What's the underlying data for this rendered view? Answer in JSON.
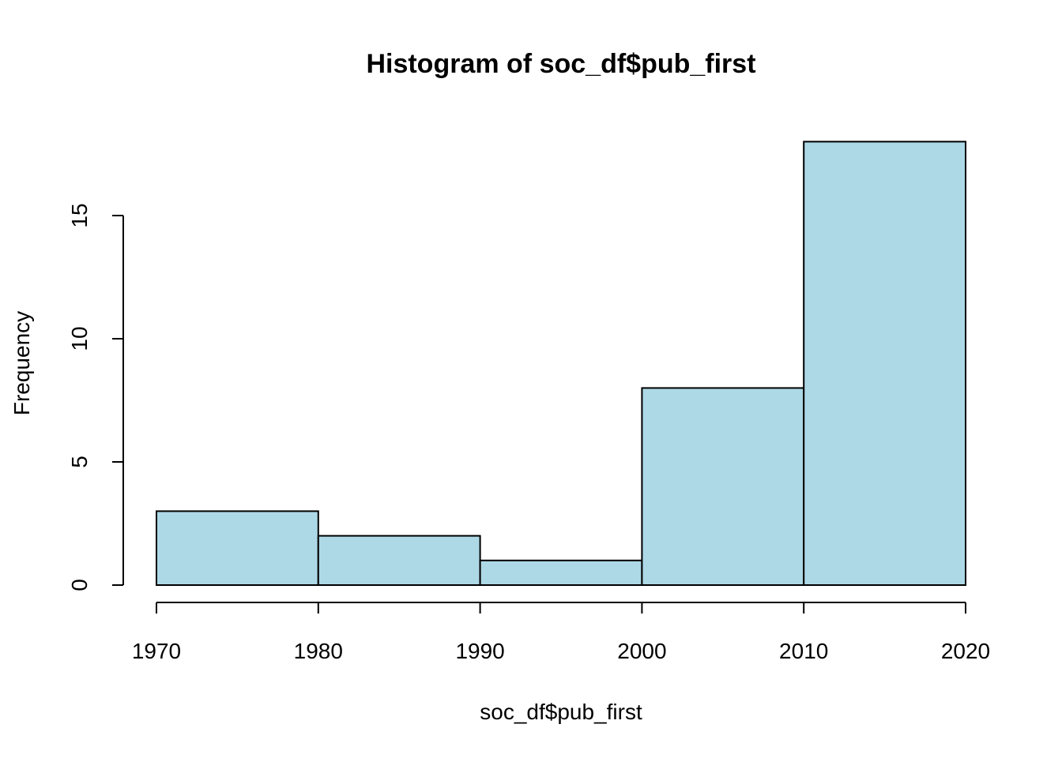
{
  "chart_data": {
    "type": "bar",
    "title": "Histogram of soc_df$pub_first",
    "xlabel": "soc_df$pub_first",
    "ylabel": "Frequency",
    "bins": [
      {
        "start": 1970,
        "end": 1980,
        "count": 3
      },
      {
        "start": 1980,
        "end": 1990,
        "count": 2
      },
      {
        "start": 1990,
        "end": 2000,
        "count": 1
      },
      {
        "start": 2000,
        "end": 2010,
        "count": 8
      },
      {
        "start": 2010,
        "end": 2020,
        "count": 18
      }
    ],
    "xlim": [
      1970,
      2020
    ],
    "ylim": [
      0,
      18
    ],
    "x_ticks": [
      1970,
      1980,
      1990,
      2000,
      2010,
      2020
    ],
    "y_ticks": [
      0,
      5,
      10,
      15
    ],
    "bar_color": "#add8e6",
    "grid": false
  }
}
